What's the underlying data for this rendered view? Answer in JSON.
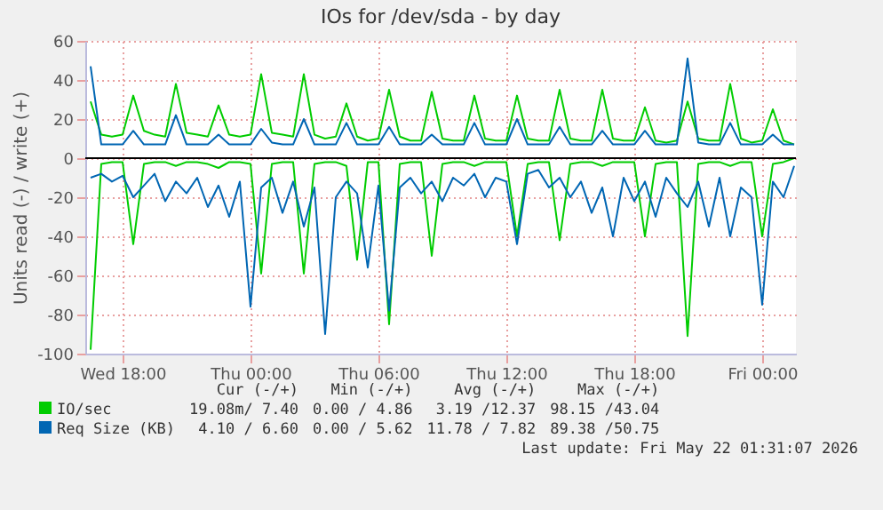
{
  "chart_data": {
    "type": "line",
    "title": "IOs for /dev/sda - by day",
    "ylabel": "Units read (-) / write (+)",
    "x": [
      "2026-05-20T16:30",
      "2026-05-20T17:00",
      "2026-05-20T17:30",
      "2026-05-20T18:00",
      "2026-05-20T18:30",
      "2026-05-20T19:00",
      "2026-05-20T19:30",
      "2026-05-20T20:00",
      "2026-05-20T20:30",
      "2026-05-20T21:00",
      "2026-05-20T21:30",
      "2026-05-20T22:00",
      "2026-05-20T22:30",
      "2026-05-20T23:00",
      "2026-05-20T23:30",
      "2026-05-21T00:00",
      "2026-05-21T00:30",
      "2026-05-21T01:00",
      "2026-05-21T01:30",
      "2026-05-21T02:00",
      "2026-05-21T02:30",
      "2026-05-21T03:00",
      "2026-05-21T03:30",
      "2026-05-21T04:00",
      "2026-05-21T04:30",
      "2026-05-21T05:00",
      "2026-05-21T05:30",
      "2026-05-21T06:00",
      "2026-05-21T06:30",
      "2026-05-21T07:00",
      "2026-05-21T07:30",
      "2026-05-21T08:00",
      "2026-05-21T08:30",
      "2026-05-21T09:00",
      "2026-05-21T09:30",
      "2026-05-21T10:00",
      "2026-05-21T10:30",
      "2026-05-21T11:00",
      "2026-05-21T11:30",
      "2026-05-21T12:00",
      "2026-05-21T12:30",
      "2026-05-21T13:00",
      "2026-05-21T13:30",
      "2026-05-21T14:00",
      "2026-05-21T14:30",
      "2026-05-21T15:00",
      "2026-05-21T15:30",
      "2026-05-21T16:00",
      "2026-05-21T16:30",
      "2026-05-21T17:00",
      "2026-05-21T17:30",
      "2026-05-21T18:00",
      "2026-05-21T18:30",
      "2026-05-21T19:00",
      "2026-05-21T19:30",
      "2026-05-21T20:00",
      "2026-05-21T20:30",
      "2026-05-21T21:00",
      "2026-05-21T21:30",
      "2026-05-21T22:00",
      "2026-05-21T22:30",
      "2026-05-21T23:00",
      "2026-05-21T23:30",
      "2026-05-22T00:00",
      "2026-05-22T00:30",
      "2026-05-22T01:00",
      "2026-05-22T01:30"
    ],
    "series": [
      {
        "name": "IO/sec",
        "color": "#00cc00",
        "values": [
          29,
          12,
          11,
          12,
          32,
          14,
          12,
          11,
          38,
          13,
          12,
          11,
          27,
          12,
          11,
          12,
          43,
          13,
          12,
          11,
          43,
          12,
          10,
          11,
          28,
          11,
          9,
          10,
          35,
          11,
          9,
          9,
          34,
          10,
          9,
          9,
          32,
          10,
          9,
          9,
          32,
          10,
          9,
          9,
          35,
          10,
          9,
          9,
          35,
          10,
          9,
          9,
          26,
          9,
          8,
          9,
          29,
          10,
          9,
          9,
          38,
          10,
          8,
          9,
          25,
          9,
          7
        ]
      },
      {
        "color": "#00cc00",
        "values": [
          -98,
          -3,
          -2,
          -2,
          -44,
          -3,
          -2,
          -2,
          -4,
          -2,
          -2,
          -3,
          -5,
          -2,
          -2,
          -3,
          -59,
          -3,
          -2,
          -2,
          -59,
          -3,
          -2,
          -2,
          -4,
          -52,
          -2,
          -2,
          -85,
          -3,
          -2,
          -2,
          -50,
          -3,
          -2,
          -2,
          -4,
          -2,
          -2,
          -2,
          -40,
          -3,
          -2,
          -2,
          -42,
          -3,
          -2,
          -2,
          -4,
          -2,
          -2,
          -2,
          -40,
          -3,
          -2,
          -2,
          -91,
          -3,
          -2,
          -2,
          -4,
          -2,
          -2,
          -40,
          -3,
          -2,
          0
        ]
      },
      {
        "name": "Req Size (KB)",
        "color": "#0066b3",
        "values": [
          47,
          7,
          7,
          7,
          14,
          7,
          7,
          7,
          22,
          7,
          7,
          7,
          12,
          7,
          7,
          7,
          15,
          8,
          7,
          7,
          20,
          7,
          7,
          7,
          18,
          7,
          7,
          7,
          16,
          7,
          7,
          7,
          12,
          7,
          7,
          7,
          18,
          7,
          7,
          7,
          20,
          7,
          7,
          7,
          16,
          7,
          7,
          7,
          14,
          7,
          7,
          7,
          14,
          7,
          7,
          7,
          51,
          8,
          7,
          7,
          18,
          7,
          7,
          7,
          12,
          7,
          7
        ]
      },
      {
        "color": "#0066b3",
        "values": [
          -10,
          -8,
          -12,
          -9,
          -20,
          -14,
          -8,
          -22,
          -12,
          -18,
          -10,
          -25,
          -14,
          -30,
          -12,
          -76,
          -15,
          -10,
          -28,
          -12,
          -35,
          -15,
          -90,
          -20,
          -12,
          -18,
          -56,
          -14,
          -78,
          -15,
          -10,
          -18,
          -12,
          -22,
          -10,
          -14,
          -8,
          -20,
          -10,
          -12,
          -44,
          -8,
          -6,
          -15,
          -10,
          -20,
          -12,
          -28,
          -15,
          -40,
          -10,
          -22,
          -12,
          -30,
          -10,
          -18,
          -25,
          -12,
          -35,
          -10,
          -40,
          -15,
          -20,
          -75,
          -12,
          -20,
          -4
        ]
      }
    ],
    "xlim": [
      "2026-05-20T16:15",
      "2026-05-22T01:35"
    ],
    "xticks": [
      {
        "value": "2026-05-20T18:00",
        "label": "Wed 18:00"
      },
      {
        "value": "2026-05-21T00:00",
        "label": "Thu 00:00"
      },
      {
        "value": "2026-05-21T06:00",
        "label": "Thu 06:00"
      },
      {
        "value": "2026-05-21T12:00",
        "label": "Thu 12:00"
      },
      {
        "value": "2026-05-21T18:00",
        "label": "Thu 18:00"
      },
      {
        "value": "2026-05-22T00:00",
        "label": "Fri 00:00"
      }
    ],
    "ylim": [
      -100,
      60
    ],
    "yticks": [
      -100,
      -80,
      -60,
      -40,
      -20,
      0,
      20,
      40,
      60
    ],
    "grid": true,
    "legend": "bottom",
    "ref_lines": [
      {
        "axis": "y",
        "value": 0,
        "color": "#000000"
      }
    ],
    "annotations": [
      "Cur (-/+)",
      "Min (-/+)",
      "Avg (-/+)",
      "Max (-/+)",
      "19.08m/ 7.40",
      "0.00 / 4.86",
      "3.19 /12.37",
      "98.15 /43.04",
      "4.10 / 6.60",
      "0.00 / 5.62",
      "11.78 / 7.82",
      "89.38 /50.75",
      "Last update: Fri May 22 01:31:07 2026"
    ]
  }
}
